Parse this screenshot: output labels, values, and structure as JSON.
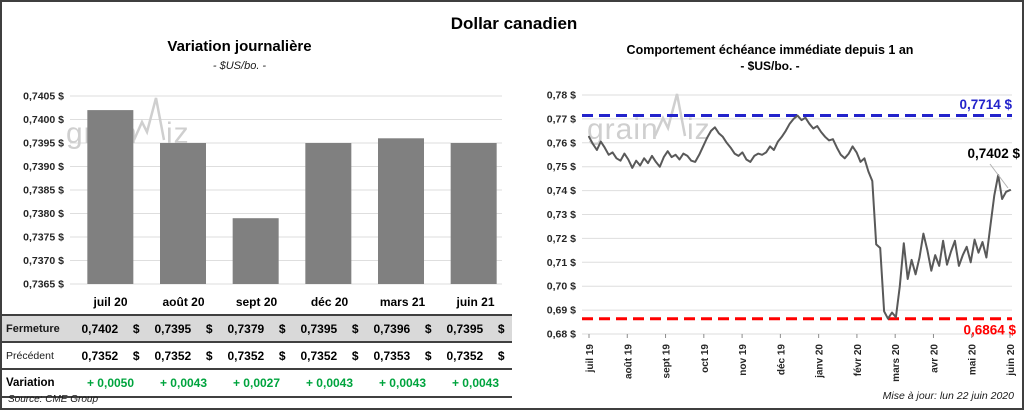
{
  "page": {
    "title": "Dollar canadien",
    "source_note": "Source: CME Group",
    "update_note": "Mise à jour: lun 22 juin 2020",
    "watermark": {
      "part1": "grain",
      "part2": "iz"
    }
  },
  "colors": {
    "bar": "#808080",
    "line": "#595959",
    "gridline": "#dedede",
    "axis_text": "#262626",
    "high_line": "#2323cb",
    "low_line": "#ff0000",
    "variation_green": "#00a43e",
    "table_header_bg": "#d9d9d9",
    "table_border": "#404040",
    "watermark": "#cfcfcf",
    "leader_line": "#b3b3b3"
  },
  "chart_data": [
    {
      "type": "bar",
      "title": "Variation  journalière",
      "subtitle": "- $US/bo. -",
      "categories": [
        "juil 20",
        "août 20",
        "sept 20",
        "déc 20",
        "mars 21",
        "juin 21"
      ],
      "values": [
        0.7402,
        0.7395,
        0.7379,
        0.7395,
        0.7396,
        0.7395
      ],
      "ylim": [
        0.7365,
        0.7405
      ],
      "ytick_step": 0.0005,
      "ytick_labels": [
        "0,7405 $",
        "0,7400 $",
        "0,7395 $",
        "0,7390 $",
        "0,7385 $",
        "0,7380 $",
        "0,7375 $",
        "0,7370 $",
        "0,7365 $"
      ],
      "grid": true,
      "legend": "none"
    },
    {
      "type": "line",
      "title": "Comportement échéance immédiate depuis 1 an",
      "subtitle": "- $US/bo. -",
      "x_categories": [
        "juil 19",
        "août 19",
        "sept 19",
        "oct 19",
        "nov 19",
        "déc 19",
        "janv 20",
        "févr 20",
        "mars 20",
        "avr 20",
        "mai 20",
        "juin 20"
      ],
      "values": [
        0.7625,
        0.7595,
        0.757,
        0.7605,
        0.758,
        0.755,
        0.756,
        0.7535,
        0.7525,
        0.7555,
        0.753,
        0.7495,
        0.7525,
        0.7505,
        0.7535,
        0.7515,
        0.7545,
        0.752,
        0.75,
        0.754,
        0.7565,
        0.754,
        0.755,
        0.753,
        0.7555,
        0.7545,
        0.7525,
        0.752,
        0.755,
        0.7585,
        0.762,
        0.765,
        0.7665,
        0.764,
        0.7625,
        0.76,
        0.758,
        0.7555,
        0.7545,
        0.756,
        0.753,
        0.752,
        0.7545,
        0.7555,
        0.755,
        0.756,
        0.7585,
        0.757,
        0.7605,
        0.7625,
        0.765,
        0.768,
        0.77,
        0.7714,
        0.7695,
        0.7705,
        0.768,
        0.766,
        0.767,
        0.7645,
        0.7625,
        0.761,
        0.7615,
        0.758,
        0.755,
        0.7535,
        0.7555,
        0.7585,
        0.756,
        0.752,
        0.7535,
        0.748,
        0.744,
        0.7175,
        0.716,
        0.6895,
        0.6864,
        0.689,
        0.687,
        0.7,
        0.718,
        0.703,
        0.711,
        0.705,
        0.712,
        0.722,
        0.715,
        0.7065,
        0.713,
        0.7085,
        0.719,
        0.709,
        0.7145,
        0.719,
        0.7085,
        0.713,
        0.7165,
        0.71,
        0.7195,
        0.714,
        0.7185,
        0.712,
        0.725,
        0.738,
        0.7465,
        0.7365,
        0.7395,
        0.7402
      ],
      "ylim": [
        0.68,
        0.78
      ],
      "ytick_step": 0.01,
      "ytick_labels": [
        "0,78 $",
        "0,77 $",
        "0,76 $",
        "0,75 $",
        "0,74 $",
        "0,73 $",
        "0,72 $",
        "0,71 $",
        "0,70 $",
        "0,69 $",
        "0,68 $"
      ],
      "grid": true,
      "legend": "none",
      "annotations": {
        "high": {
          "value": 0.7714,
          "label": "0,7714 $"
        },
        "low": {
          "value": 0.6864,
          "label": "0,6864 $"
        },
        "last": {
          "value": 0.7402,
          "label": "0,7402 $"
        }
      }
    }
  ],
  "table": {
    "rows": [
      {
        "key": "close",
        "label": "Fermeture",
        "values": [
          "0,7402 $",
          "0,7395 $",
          "0,7379 $",
          "0,7395 $",
          "0,7396 $",
          "0,7395 $"
        ]
      },
      {
        "key": "prev",
        "label": "Précédent",
        "values": [
          "0,7352 $",
          "0,7352 $",
          "0,7352 $",
          "0,7352 $",
          "0,7353 $",
          "0,7352 $"
        ]
      },
      {
        "key": "var",
        "label": "Variation",
        "values": [
          "+ 0,0050",
          "+ 0,0043",
          "+ 0,0027",
          "+ 0,0043",
          "+ 0,0043",
          "+ 0,0043"
        ]
      }
    ]
  }
}
